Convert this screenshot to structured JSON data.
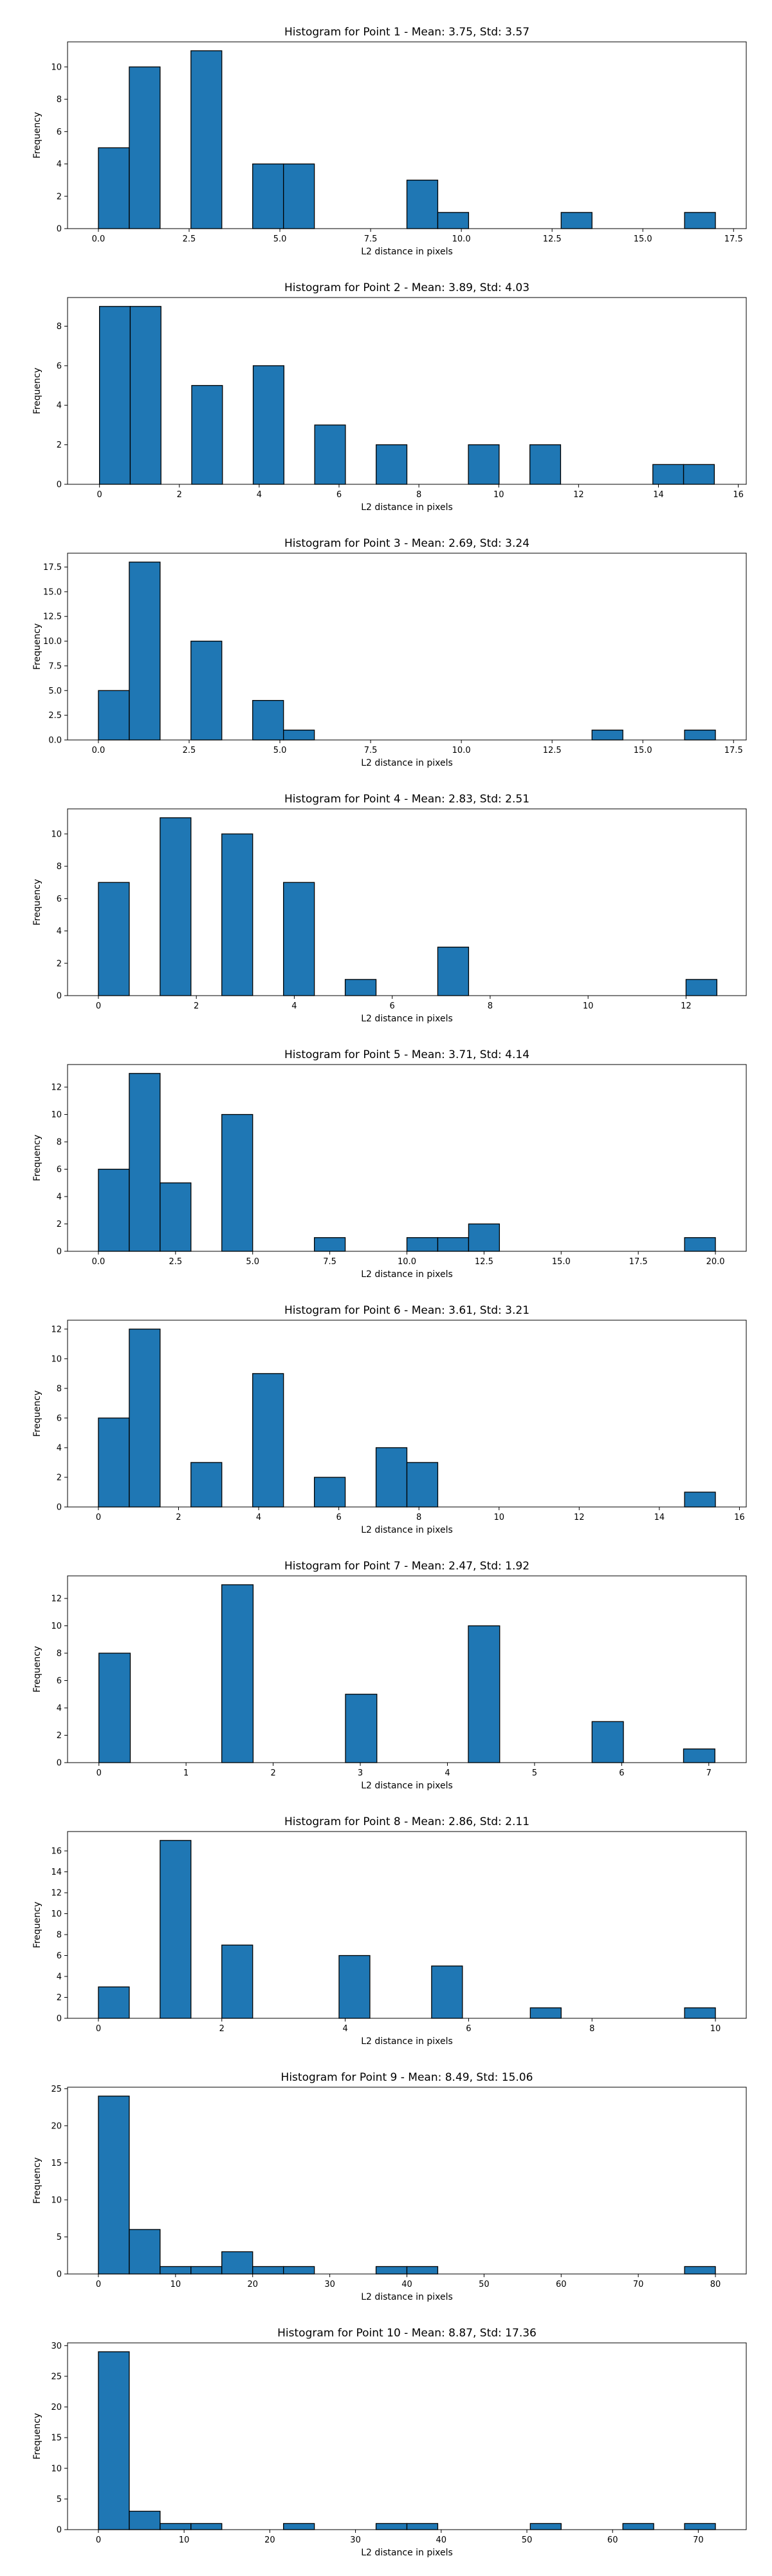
{
  "chart_data": [
    {
      "type": "bar",
      "title": "Histogram for Point 1 - Mean: 3.75, Std: 3.57",
      "xlabel": "L2 distance in pixels",
      "ylabel": "Frequency",
      "xlim": [
        -0.85,
        17.85
      ],
      "ylim": [
        0,
        11.55
      ],
      "xticks": [
        0,
        2.5,
        5,
        7.5,
        10,
        12.5,
        15,
        17.5
      ],
      "xtick_labels": [
        "0.0",
        "2.5",
        "5.0",
        "7.5",
        "10.0",
        "12.5",
        "15.0",
        "17.5"
      ],
      "yticks": [
        0,
        2,
        4,
        6,
        8,
        10
      ],
      "ytick_labels": [
        "0",
        "2",
        "4",
        "6",
        "8",
        "10"
      ],
      "bins": [
        [
          0,
          0.85,
          5
        ],
        [
          0.85,
          1.7,
          10
        ],
        [
          2.55,
          3.4,
          11
        ],
        [
          4.25,
          5.1,
          4
        ],
        [
          5.1,
          5.95,
          4
        ],
        [
          8.5,
          9.35,
          3
        ],
        [
          9.35,
          10.2,
          1
        ],
        [
          12.75,
          13.6,
          1
        ],
        [
          16.15,
          17,
          1
        ]
      ]
    },
    {
      "type": "bar",
      "title": "Histogram for Point 2 - Mean: 3.89, Std: 4.03",
      "xlabel": "L2 distance in pixels",
      "ylabel": "Frequency",
      "xlim": [
        -0.8,
        16.2
      ],
      "ylim": [
        0,
        9.45
      ],
      "xticks": [
        0,
        2,
        4,
        6,
        8,
        10,
        12,
        14,
        16
      ],
      "xtick_labels": [
        "0",
        "2",
        "4",
        "6",
        "8",
        "10",
        "12",
        "14",
        "16"
      ],
      "yticks": [
        0,
        2,
        4,
        6,
        8
      ],
      "ytick_labels": [
        "0",
        "2",
        "4",
        "6",
        "8"
      ],
      "bins": [
        [
          0,
          0.77,
          9
        ],
        [
          0.77,
          1.54,
          9
        ],
        [
          2.31,
          3.08,
          5
        ],
        [
          3.85,
          4.62,
          6
        ],
        [
          5.39,
          6.16,
          3
        ],
        [
          6.93,
          7.7,
          2
        ],
        [
          9.24,
          10.01,
          2
        ],
        [
          10.78,
          11.55,
          2
        ],
        [
          13.86,
          14.63,
          1
        ],
        [
          14.63,
          15.4,
          1
        ]
      ]
    },
    {
      "type": "bar",
      "title": "Histogram for Point 3 - Mean: 2.69, Std: 3.24",
      "xlabel": "L2 distance in pixels",
      "ylabel": "Frequency",
      "xlim": [
        -0.85,
        17.85
      ],
      "ylim": [
        0,
        18.9
      ],
      "xticks": [
        0,
        2.5,
        5,
        7.5,
        10,
        12.5,
        15,
        17.5
      ],
      "xtick_labels": [
        "0.0",
        "2.5",
        "5.0",
        "7.5",
        "10.0",
        "12.5",
        "15.0",
        "17.5"
      ],
      "yticks": [
        0,
        2.5,
        5,
        7.5,
        10,
        12.5,
        15,
        17.5
      ],
      "ytick_labels": [
        "0.0",
        "2.5",
        "5.0",
        "7.5",
        "10.0",
        "12.5",
        "15.0",
        "17.5"
      ],
      "bins": [
        [
          0,
          0.85,
          5
        ],
        [
          0.85,
          1.7,
          18
        ],
        [
          2.55,
          3.4,
          10
        ],
        [
          4.25,
          5.1,
          4
        ],
        [
          5.1,
          5.95,
          1
        ],
        [
          13.6,
          14.45,
          1
        ],
        [
          16.15,
          17,
          1
        ]
      ]
    },
    {
      "type": "bar",
      "title": "Histogram for Point 4 - Mean: 2.83, Std: 2.51",
      "xlabel": "L2 distance in pixels",
      "ylabel": "Frequency",
      "xlim": [
        -0.63,
        13.23
      ],
      "ylim": [
        0,
        11.55
      ],
      "xticks": [
        0,
        2,
        4,
        6,
        8,
        10,
        12
      ],
      "xtick_labels": [
        "0",
        "2",
        "4",
        "6",
        "8",
        "10",
        "12"
      ],
      "yticks": [
        0,
        2,
        4,
        6,
        8,
        10
      ],
      "ytick_labels": [
        "0",
        "2",
        "4",
        "6",
        "8",
        "10"
      ],
      "bins": [
        [
          0,
          0.63,
          7
        ],
        [
          1.26,
          1.89,
          11
        ],
        [
          2.52,
          3.15,
          10
        ],
        [
          3.78,
          4.41,
          7
        ],
        [
          5.04,
          5.67,
          1
        ],
        [
          6.93,
          7.56,
          3
        ],
        [
          12,
          12.63,
          1
        ]
      ]
    },
    {
      "type": "bar",
      "title": "Histogram for Point 5 - Mean: 3.71, Std: 4.14",
      "xlabel": "L2 distance in pixels",
      "ylabel": "Frequency",
      "xlim": [
        -1,
        21
      ],
      "ylim": [
        0,
        13.65
      ],
      "xticks": [
        0,
        2.5,
        5,
        7.5,
        10,
        12.5,
        15,
        17.5,
        20
      ],
      "xtick_labels": [
        "0.0",
        "2.5",
        "5.0",
        "7.5",
        "10.0",
        "12.5",
        "15.0",
        "17.5",
        "20.0"
      ],
      "yticks": [
        0,
        2,
        4,
        6,
        8,
        10,
        12
      ],
      "ytick_labels": [
        "0",
        "2",
        "4",
        "6",
        "8",
        "10",
        "12"
      ],
      "bins": [
        [
          0,
          1,
          6
        ],
        [
          1,
          2,
          13
        ],
        [
          2,
          3,
          5
        ],
        [
          4,
          5,
          10
        ],
        [
          7,
          8,
          1
        ],
        [
          10,
          11,
          1
        ],
        [
          11,
          12,
          1
        ],
        [
          12,
          13,
          2
        ],
        [
          19,
          20,
          1
        ]
      ]
    },
    {
      "type": "bar",
      "title": "Histogram for Point 6 - Mean: 3.61, Std: 3.21",
      "xlabel": "L2 distance in pixels",
      "ylabel": "Frequency",
      "xlim": [
        -0.77,
        16.17
      ],
      "ylim": [
        0,
        12.6
      ],
      "xticks": [
        0,
        2,
        4,
        6,
        8,
        10,
        12,
        14,
        16
      ],
      "xtick_labels": [
        "0",
        "2",
        "4",
        "6",
        "8",
        "10",
        "12",
        "14",
        "16"
      ],
      "yticks": [
        0,
        2,
        4,
        6,
        8,
        10,
        12
      ],
      "ytick_labels": [
        "0",
        "2",
        "4",
        "6",
        "8",
        "10",
        "12"
      ],
      "bins": [
        [
          0,
          0.77,
          6
        ],
        [
          0.77,
          1.54,
          12
        ],
        [
          2.31,
          3.08,
          3
        ],
        [
          3.85,
          4.62,
          9
        ],
        [
          5.39,
          6.16,
          2
        ],
        [
          6.93,
          7.7,
          4
        ],
        [
          7.7,
          8.47,
          3
        ],
        [
          14.63,
          15.4,
          1
        ]
      ]
    },
    {
      "type": "bar",
      "title": "Histogram for Point 7 - Mean: 2.47, Std: 1.92",
      "xlabel": "L2 distance in pixels",
      "ylabel": "Frequency",
      "xlim": [
        -0.36,
        7.43
      ],
      "ylim": [
        0,
        13.65
      ],
      "xticks": [
        0,
        1,
        2,
        3,
        4,
        5,
        6,
        7
      ],
      "xtick_labels": [
        "0",
        "1",
        "2",
        "3",
        "4",
        "5",
        "6",
        "7"
      ],
      "yticks": [
        0,
        2,
        4,
        6,
        8,
        10,
        12
      ],
      "ytick_labels": [
        "0",
        "2",
        "4",
        "6",
        "8",
        "10",
        "12"
      ],
      "bins": [
        [
          0,
          0.36,
          8
        ],
        [
          1.41,
          1.77,
          13
        ],
        [
          2.83,
          3.19,
          5
        ],
        [
          4.24,
          4.6,
          10
        ],
        [
          5.66,
          6.02,
          3
        ],
        [
          6.71,
          7.07,
          1
        ]
      ]
    },
    {
      "type": "bar",
      "title": "Histogram for Point 8 - Mean: 2.86, Std: 2.11",
      "xlabel": "L2 distance in pixels",
      "ylabel": "Frequency",
      "xlim": [
        -0.5,
        10.5
      ],
      "ylim": [
        0,
        17.85
      ],
      "xticks": [
        0,
        2,
        4,
        6,
        8,
        10
      ],
      "xtick_labels": [
        "0",
        "2",
        "4",
        "6",
        "8",
        "10"
      ],
      "yticks": [
        0,
        2,
        4,
        6,
        8,
        10,
        12,
        14,
        16
      ],
      "ytick_labels": [
        "0",
        "2",
        "4",
        "6",
        "8",
        "10",
        "12",
        "14",
        "16"
      ],
      "bins": [
        [
          0,
          0.5,
          3
        ],
        [
          1,
          1.5,
          17
        ],
        [
          2,
          2.5,
          7
        ],
        [
          3.9,
          4.4,
          6
        ],
        [
          5.4,
          5.9,
          5
        ],
        [
          7,
          7.5,
          1
        ],
        [
          9.5,
          10,
          1
        ]
      ]
    },
    {
      "type": "bar",
      "title": "Histogram for Point 9 - Mean: 8.49, Std: 15.06",
      "xlabel": "L2 distance in pixels",
      "ylabel": "Frequency",
      "xlim": [
        -4,
        84
      ],
      "ylim": [
        0,
        25.2
      ],
      "xticks": [
        0,
        10,
        20,
        30,
        40,
        50,
        60,
        70,
        80
      ],
      "xtick_labels": [
        "0",
        "10",
        "20",
        "30",
        "40",
        "50",
        "60",
        "70",
        "80"
      ],
      "yticks": [
        0,
        5,
        10,
        15,
        20,
        25
      ],
      "ytick_labels": [
        "0",
        "5",
        "10",
        "15",
        "20",
        "25"
      ],
      "bins": [
        [
          0,
          4,
          24
        ],
        [
          4,
          8,
          6
        ],
        [
          8,
          12,
          1
        ],
        [
          12,
          16,
          1
        ],
        [
          16,
          20,
          3
        ],
        [
          20,
          24,
          1
        ],
        [
          24,
          28,
          1
        ],
        [
          36,
          40,
          1
        ],
        [
          40,
          44,
          1
        ],
        [
          76,
          80,
          1
        ]
      ]
    },
    {
      "type": "bar",
      "title": "Histogram for Point 10 - Mean: 8.87, Std: 17.36",
      "xlabel": "L2 distance in pixels",
      "ylabel": "Frequency",
      "xlim": [
        -3.6,
        75.6
      ],
      "ylim": [
        0,
        30.45
      ],
      "xticks": [
        0,
        10,
        20,
        30,
        40,
        50,
        60,
        70
      ],
      "xtick_labels": [
        "0",
        "10",
        "20",
        "30",
        "40",
        "50",
        "60",
        "70"
      ],
      "yticks": [
        0,
        5,
        10,
        15,
        20,
        25,
        30
      ],
      "ytick_labels": [
        "0",
        "5",
        "10",
        "15",
        "20",
        "25",
        "30"
      ],
      "bins": [
        [
          0,
          3.6,
          29
        ],
        [
          3.6,
          7.2,
          3
        ],
        [
          7.2,
          10.8,
          1
        ],
        [
          10.8,
          14.4,
          1
        ],
        [
          21.6,
          25.2,
          1
        ],
        [
          32.4,
          36,
          1
        ],
        [
          36,
          39.6,
          1
        ],
        [
          50.4,
          54,
          1
        ],
        [
          61.2,
          64.8,
          1
        ],
        [
          68.4,
          72,
          1
        ]
      ]
    }
  ],
  "colors": {
    "bar_fill": "#1f77b4",
    "bar_edge": "#000000",
    "axis": "#000000",
    "background": "#ffffff"
  }
}
